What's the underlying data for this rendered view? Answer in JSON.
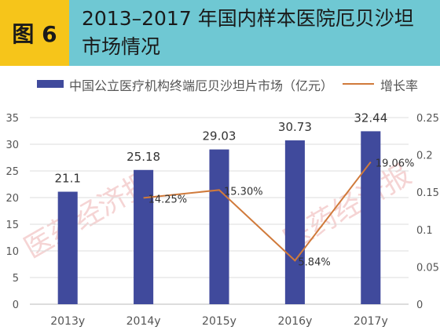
{
  "header": {
    "badge": "图 6",
    "title_line1": "2013–2017 年国内样本医院厄贝沙坦",
    "title_line2": "市场情况"
  },
  "colors": {
    "header_bg": "#6fc8d3",
    "badge_bg": "#f6c51a",
    "bar": "#404a9c",
    "line": "#d07a3b",
    "grid": "#dcdcdc",
    "axis_text": "#555555",
    "watermark": "#e8a0a0"
  },
  "watermark": {
    "left": "医药经济报",
    "right": "医药经济报"
  },
  "chart_data": {
    "type": "bar",
    "categories": [
      "2013y",
      "2014y",
      "2015y",
      "2016y",
      "2017y"
    ],
    "series": [
      {
        "name": "中国公立医疗机构终端厄贝沙坦片市场（亿元）",
        "type": "bar",
        "axis": "left",
        "values": [
          21.1,
          25.18,
          29.03,
          30.73,
          32.44
        ],
        "labels": [
          "21.1",
          "25.18",
          "29.03",
          "30.73",
          "32.44"
        ]
      },
      {
        "name": "增长率",
        "type": "line",
        "axis": "right",
        "values": [
          null,
          0.1425,
          0.153,
          0.0584,
          0.1906
        ],
        "labels": [
          "",
          "14.25%",
          "15.30%",
          "5.84%",
          "19.06%"
        ]
      }
    ],
    "y_left": {
      "min": 0,
      "max": 35,
      "ticks": [
        "0",
        "5",
        "10",
        "15",
        "20",
        "25",
        "30",
        "35"
      ]
    },
    "y_right": {
      "min": 0,
      "max": 0.25,
      "ticks": [
        "0",
        "0.05",
        "0.1",
        "0.15",
        "0.2",
        "0.25"
      ]
    },
    "grid": true,
    "legend_position": "top"
  }
}
